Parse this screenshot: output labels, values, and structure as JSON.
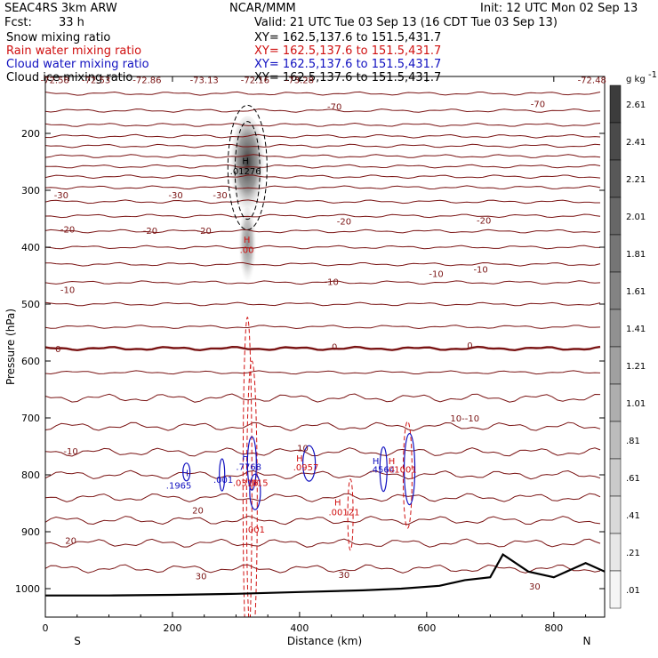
{
  "header": {
    "model": "SEAC4RS  3km ARW",
    "center": "NCAR/MMM",
    "init": "Init: 12 UTC Mon 02 Sep 13",
    "fcst_label": "Fcst:",
    "fcst_value": "33 h",
    "valid": "Valid: 21 UTC Tue 03 Sep 13 (16 CDT Tue 03 Sep 13)",
    "fields": [
      {
        "name": "Snow mixing ratio",
        "xy": "XY= 162.5,137.6 to 151.5,431.7",
        "color": "#000000"
      },
      {
        "name": "Rain water mixing ratio",
        "xy": "XY= 162.5,137.6 to 151.5,431.7",
        "color": "#d01010"
      },
      {
        "name": "Cloud water mixing ratio",
        "xy": "XY= 162.5,137.6 to 151.5,431.7",
        "color": "#1010c0"
      },
      {
        "name": "Cloud ice mixing ratio",
        "xy": "XY= 162.5,137.6 to 151.5,431.7",
        "color": "#000000"
      }
    ]
  },
  "chart_data": {
    "type": "cross-section contour",
    "xlabel": "Distance (km)",
    "ylabel": "Pressure (hPa)",
    "xlim": [
      0,
      880
    ],
    "ylim": [
      1050,
      100
    ],
    "xticks": [
      0,
      200,
      400,
      600,
      800
    ],
    "yticks": [
      200,
      300,
      400,
      500,
      600,
      700,
      800,
      900,
      1000
    ],
    "x_end_labels": {
      "left": "S",
      "right": "N"
    },
    "colorbar": {
      "unit": "g kg",
      "unit_exp": "-1",
      "labels": [
        "2.61",
        "2.41",
        "2.21",
        "2.01",
        "1.81",
        "1.61",
        "1.41",
        "1.21",
        "1.01",
        ".81",
        ".61",
        ".41",
        ".21",
        ".01"
      ]
    },
    "temperature_top_labels": [
      "-72.58",
      "-72.53",
      "-72.86",
      "-73.13",
      "-72.16",
      "-73.28",
      "-72.48"
    ],
    "isotherm_labels": [
      {
        "text": "-70",
        "x": 455,
        "p": 152
      },
      {
        "text": "-70",
        "x": 775,
        "p": 148
      },
      {
        "text": "-30",
        "x": 25,
        "p": 308
      },
      {
        "text": "-30",
        "x": 205,
        "p": 308
      },
      {
        "text": "-30",
        "x": 275,
        "p": 308
      },
      {
        "text": "-20",
        "x": 35,
        "p": 368
      },
      {
        "text": "-20",
        "x": 165,
        "p": 370
      },
      {
        "text": "-20",
        "x": 250,
        "p": 370
      },
      {
        "text": "-20",
        "x": 470,
        "p": 354
      },
      {
        "text": "-20",
        "x": 690,
        "p": 352
      },
      {
        "text": "-10",
        "x": 35,
        "p": 474
      },
      {
        "text": "-10",
        "x": 450,
        "p": 460
      },
      {
        "text": "-10",
        "x": 615,
        "p": 446
      },
      {
        "text": "-10",
        "x": 685,
        "p": 438
      },
      {
        "text": "0",
        "x": 20,
        "p": 578
      },
      {
        "text": "0",
        "x": 455,
        "p": 574
      },
      {
        "text": "0",
        "x": 668,
        "p": 572
      },
      {
        "text": "-10",
        "x": 40,
        "p": 758
      },
      {
        "text": "10",
        "x": 405,
        "p": 752
      },
      {
        "text": "10--10",
        "x": 660,
        "p": 700
      },
      {
        "text": "20",
        "x": 240,
        "p": 862
      },
      {
        "text": "20",
        "x": 40,
        "p": 915
      },
      {
        "text": "30",
        "x": 245,
        "p": 977
      },
      {
        "text": "30",
        "x": 470,
        "p": 975
      },
      {
        "text": "30",
        "x": 770,
        "p": 995
      }
    ],
    "maxima_labels": [
      {
        "text": "H",
        "x": 220,
        "p": 796,
        "color": "#1010c0"
      },
      {
        "text": ".1965",
        "x": 210,
        "p": 818,
        "color": "#1010c0"
      },
      {
        "text": ".001",
        "x": 280,
        "p": 808,
        "color": "#1010c0"
      },
      {
        "text": "H",
        "x": 315,
        "p": 768,
        "color": "#1010c0"
      },
      {
        "text": ".7768",
        "x": 320,
        "p": 785,
        "color": "#1010c0"
      },
      {
        "text": ".0316",
        "x": 315,
        "p": 813,
        "color": "#d01010"
      },
      {
        "text": ".015",
        "x": 335,
        "p": 813,
        "color": "#d01010"
      },
      {
        "text": ".001",
        "x": 330,
        "p": 895,
        "color": "#d01010"
      },
      {
        "text": "H",
        "x": 400,
        "p": 770,
        "color": "#d01010"
      },
      {
        "text": ".0957",
        "x": 410,
        "p": 786,
        "color": "#d01010"
      },
      {
        "text": "H",
        "x": 520,
        "p": 775,
        "color": "#1010c0"
      },
      {
        "text": ".4564",
        "x": 530,
        "p": 790,
        "color": "#1010c0"
      },
      {
        "text": "H",
        "x": 545,
        "p": 775,
        "color": "#d01010"
      },
      {
        "text": ".01001",
        "x": 560,
        "p": 790,
        "color": "#d01010"
      },
      {
        "text": "H",
        "x": 460,
        "p": 848,
        "color": "#d01010"
      },
      {
        "text": ".00121",
        "x": 470,
        "p": 865,
        "color": "#d01010"
      },
      {
        "text": "H",
        "x": 317,
        "p": 386,
        "color": "#d01010"
      },
      {
        "text": ".00",
        "x": 317,
        "p": 404,
        "color": "#d01010"
      },
      {
        "text": "H",
        "x": 315,
        "p": 248,
        "color": "#000000"
      },
      {
        "text": ".01276",
        "x": 315,
        "p": 266,
        "color": "#000000"
      }
    ],
    "surface_pressure": [
      [
        0,
        1012
      ],
      [
        100,
        1012
      ],
      [
        200,
        1011
      ],
      [
        300,
        1009
      ],
      [
        400,
        1006
      ],
      [
        500,
        1003
      ],
      [
        560,
        1000
      ],
      [
        620,
        995
      ],
      [
        660,
        985
      ],
      [
        700,
        980
      ],
      [
        720,
        940
      ],
      [
        760,
        970
      ],
      [
        800,
        980
      ],
      [
        830,
        965
      ],
      [
        850,
        955
      ],
      [
        880,
        970
      ]
    ],
    "levels_on_y_axis": "1050 at bottom, 100 at top (linear)"
  }
}
